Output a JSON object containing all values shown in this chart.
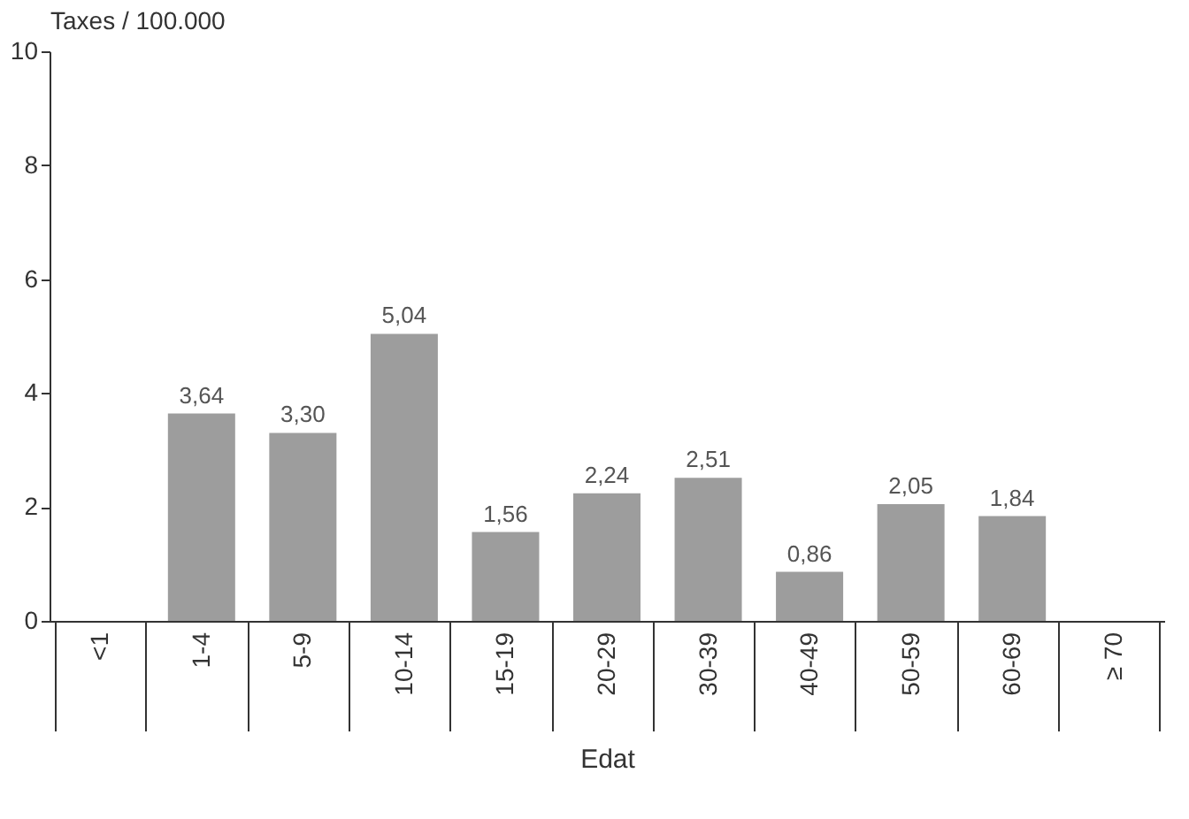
{
  "chart_data": {
    "type": "bar",
    "ylabel": "Taxes / 100.000",
    "xlabel": "Edat",
    "categories": [
      "<1",
      "1-4",
      "5-9",
      "10-14",
      "15-19",
      "20-29",
      "30-39",
      "40-49",
      "50-59",
      "60-69",
      "≥ 70"
    ],
    "values": [
      null,
      3.64,
      3.3,
      5.04,
      1.56,
      2.24,
      2.51,
      0.86,
      2.05,
      1.84,
      null
    ],
    "value_labels": [
      null,
      "3,64",
      "3,30",
      "5,04",
      "1,56",
      "2,24",
      "2,51",
      "0,86",
      "2,05",
      "1,84",
      null
    ],
    "color": "#9d9d9d",
    "ylim": [
      0,
      10
    ],
    "yticks": [
      0,
      2,
      4,
      6,
      8,
      10
    ],
    "grid": false
  }
}
